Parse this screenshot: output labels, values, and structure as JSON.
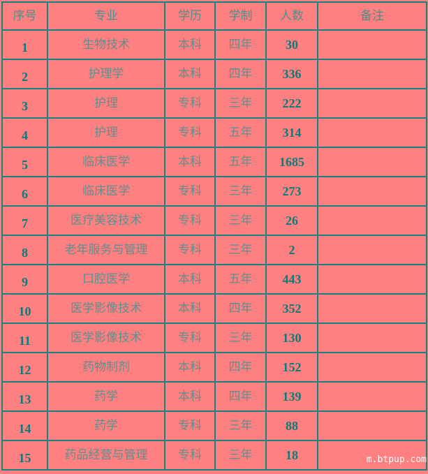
{
  "headers": [
    "序号",
    "专业",
    "学历",
    "学制",
    "人数",
    "备注"
  ],
  "rows": [
    [
      "1",
      "生物技术",
      "本科",
      "四年",
      "30",
      ""
    ],
    [
      "2",
      "护理学",
      "本科",
      "四年",
      "336",
      ""
    ],
    [
      "3",
      "护理",
      "专科",
      "三年",
      "222",
      ""
    ],
    [
      "4",
      "护理",
      "专科",
      "五年",
      "314",
      ""
    ],
    [
      "5",
      "临床医学",
      "本科",
      "五年",
      "1685",
      ""
    ],
    [
      "6",
      "临床医学",
      "专科",
      "三年",
      "273",
      ""
    ],
    [
      "7",
      "医疗美容技术",
      "专科",
      "三年",
      "26",
      ""
    ],
    [
      "8",
      "老年服务与管理",
      "专科",
      "三年",
      "2",
      ""
    ],
    [
      "9",
      "口腔医学",
      "本科",
      "五年",
      "443",
      ""
    ],
    [
      "10",
      "医学影像技术",
      "本科",
      "四年",
      "352",
      ""
    ],
    [
      "11",
      "医学影像技术",
      "专科",
      "三年",
      "130",
      ""
    ],
    [
      "12",
      "药物制剂",
      "本科",
      "四年",
      "152",
      ""
    ],
    [
      "13",
      "药学",
      "本科",
      "四年",
      "139",
      ""
    ],
    [
      "14",
      "药学",
      "专科",
      "三年",
      "88",
      ""
    ],
    [
      "15",
      "药品经营与管理",
      "专科",
      "三年",
      "18",
      ""
    ]
  ],
  "watermark": "m.btpup.com",
  "colors": {
    "background": "#ff8080",
    "border": "#178282",
    "number_text": "#0e7a78"
  }
}
